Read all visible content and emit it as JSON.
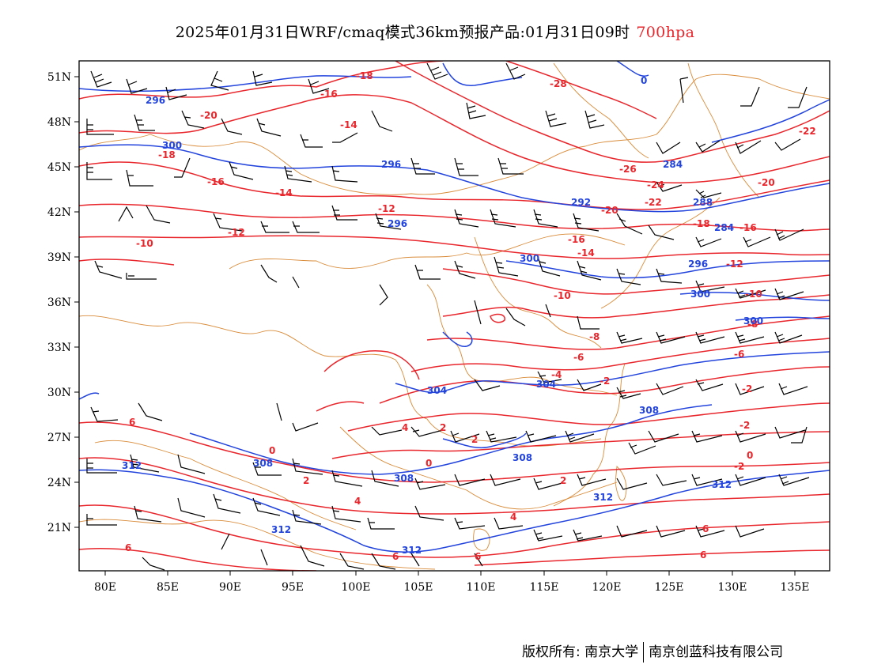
{
  "title": {
    "main": "2025年01月31日WRF/cmaq模式36km预报产品:01月31日09时",
    "level": "700hpa"
  },
  "map": {
    "lon_ticks": [
      "80E",
      "85E",
      "90E",
      "95E",
      "100E",
      "105E",
      "110E",
      "115E",
      "120E",
      "125E",
      "130E",
      "135E"
    ],
    "lat_ticks": [
      "51N",
      "48N",
      "45N",
      "42N",
      "39N",
      "36N",
      "33N",
      "30N",
      "27N",
      "24N",
      "21N"
    ],
    "colors": {
      "temperature": "#e8262c",
      "height": "#2244dd",
      "border": "#d98c3a",
      "wind": "#000000"
    },
    "temperature_labels": [
      "-28",
      "-26",
      "-24",
      "-22",
      "-22",
      "-20",
      "-20",
      "-20",
      "-18",
      "-18",
      "-18",
      "-16",
      "-16",
      "-16",
      "-16",
      "-14",
      "-14",
      "-14",
      "-12",
      "-12",
      "-12",
      "-10",
      "-10",
      "-10",
      "-8",
      "-8",
      "-6",
      "-6",
      "-4",
      "-2",
      "-2",
      "-2",
      "0",
      "0",
      "0",
      "-2",
      "2",
      "2",
      "2",
      "2",
      "4",
      "4",
      "4",
      "6",
      "6",
      "6",
      "6",
      "6",
      "6"
    ],
    "height_labels": [
      "296",
      "300",
      "296",
      "292",
      "296",
      "300",
      "300",
      "296",
      "284",
      "288",
      "284",
      "304",
      "304",
      "308",
      "308",
      "308",
      "308",
      "312",
      "312",
      "312",
      "312",
      "312",
      "300",
      "0"
    ]
  },
  "footer": {
    "left": "版权所有: 南京大学",
    "right": "南京创蓝科技有限公司"
  }
}
